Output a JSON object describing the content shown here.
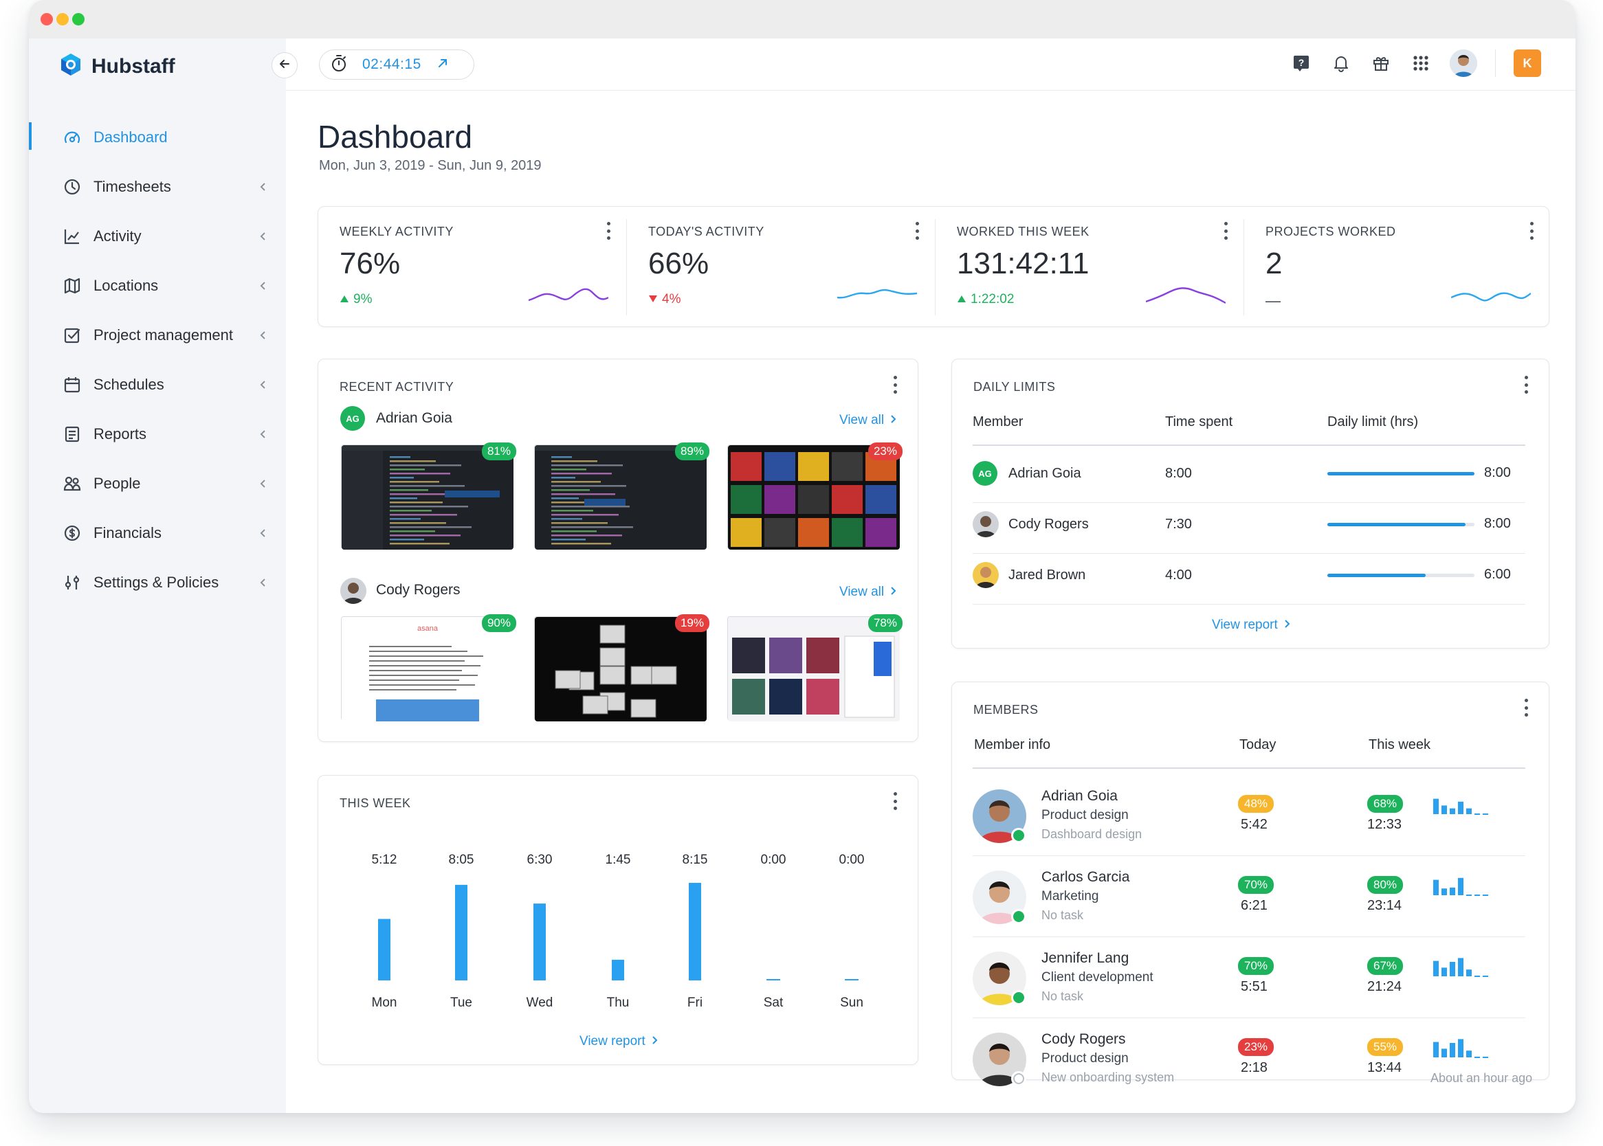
{
  "app": {
    "name": "Hubstaff"
  },
  "timer": {
    "value": "02:44:15"
  },
  "topbar": {
    "user_initial": "K"
  },
  "sidebar": {
    "items": [
      {
        "label": "Dashboard",
        "icon": "gauge-icon",
        "active": true
      },
      {
        "label": "Timesheets",
        "icon": "clock-icon"
      },
      {
        "label": "Activity",
        "icon": "line-chart-icon"
      },
      {
        "label": "Locations",
        "icon": "map-icon"
      },
      {
        "label": "Project management",
        "icon": "checkbox-icon"
      },
      {
        "label": "Schedules",
        "icon": "calendar-icon"
      },
      {
        "label": "Reports",
        "icon": "report-icon"
      },
      {
        "label": "People",
        "icon": "people-icon"
      },
      {
        "label": "Financials",
        "icon": "dollar-icon"
      },
      {
        "label": "Settings & Policies",
        "icon": "sliders-icon"
      }
    ]
  },
  "page": {
    "title": "Dashboard",
    "date_range": "Mon, Jun 3, 2019 - Sun, Jun 9, 2019"
  },
  "stats": [
    {
      "label": "WEEKLY ACTIVITY",
      "value": "76%",
      "delta": "9%",
      "trend": "up"
    },
    {
      "label": "TODAY'S ACTIVITY",
      "value": "66%",
      "delta": "4%",
      "trend": "down"
    },
    {
      "label": "WORKED THIS WEEK",
      "value": "131:42:11",
      "delta": "1:22:02",
      "trend": "up"
    },
    {
      "label": "PROJECTS WORKED",
      "value": "2",
      "delta": "—",
      "trend": "none"
    }
  ],
  "recent_activity": {
    "title": "RECENT ACTIVITY",
    "view_all": "View all",
    "users": [
      {
        "initials": "AG",
        "name": "Adrian Goia",
        "shots": [
          {
            "pct": "81%",
            "level": "g"
          },
          {
            "pct": "89%",
            "level": "g"
          },
          {
            "pct": "23%",
            "level": "r"
          }
        ]
      },
      {
        "initials": "",
        "name": "Cody Rogers",
        "shots": [
          {
            "pct": "90%",
            "level": "g"
          },
          {
            "pct": "19%",
            "level": "r"
          },
          {
            "pct": "78%",
            "level": "g"
          }
        ]
      }
    ],
    "asana_label": "asana"
  },
  "this_week": {
    "title": "THIS WEEK",
    "view_report": "View report",
    "chart_data": {
      "type": "bar",
      "categories": [
        "Mon",
        "Tue",
        "Wed",
        "Thu",
        "Fri",
        "Sat",
        "Sun"
      ],
      "labels": [
        "5:12",
        "8:05",
        "6:30",
        "1:45",
        "8:15",
        "0:00",
        "0:00"
      ],
      "values": [
        5.2,
        8.083,
        6.5,
        1.75,
        8.25,
        0,
        0
      ],
      "ylim": [
        0,
        8.25
      ]
    }
  },
  "daily_limits": {
    "title": "DAILY LIMITS",
    "headers": {
      "member": "Member",
      "time_spent": "Time spent",
      "limit": "Daily limit (hrs)"
    },
    "view_report": "View report",
    "rows": [
      {
        "initials": "AG",
        "name": "Adrian Goia",
        "spent": "8:00",
        "limit": "8:00",
        "fraction": 1.0
      },
      {
        "initials": "",
        "name": "Cody Rogers",
        "spent": "7:30",
        "limit": "8:00",
        "fraction": 0.9375
      },
      {
        "initials": "",
        "name": "Jared Brown",
        "spent": "4:00",
        "limit": "6:00",
        "fraction": 0.667
      }
    ]
  },
  "members": {
    "title": "MEMBERS",
    "headers": {
      "info": "Member info",
      "today": "Today",
      "week": "This week"
    },
    "rows": [
      {
        "name": "Adrian Goia",
        "role": "Product design",
        "task": "Dashboard design",
        "today_pct": "48%",
        "today_level": "o",
        "today_time": "5:42",
        "week_pct": "68%",
        "week_level": "g",
        "week_time": "12:33",
        "online": true,
        "bars": [
          0.8,
          0.45,
          0.3,
          0.65,
          0.3,
          0,
          0
        ],
        "note": ""
      },
      {
        "name": "Carlos Garcia",
        "role": "Marketing",
        "task": "No task",
        "today_pct": "70%",
        "today_level": "g",
        "today_time": "6:21",
        "week_pct": "80%",
        "week_level": "g",
        "week_time": "23:14",
        "online": true,
        "bars": [
          0.8,
          0.35,
          0.4,
          0.9,
          0,
          0,
          0
        ],
        "note": ""
      },
      {
        "name": "Jennifer Lang",
        "role": "Client development",
        "task": "No task",
        "today_pct": "70%",
        "today_level": "g",
        "today_time": "5:51",
        "week_pct": "67%",
        "week_level": "g",
        "week_time": "21:24",
        "online": true,
        "bars": [
          0.8,
          0.45,
          0.75,
          0.95,
          0.35,
          0,
          0
        ],
        "note": ""
      },
      {
        "name": "Cody Rogers",
        "role": "Product design",
        "task": "New onboarding system",
        "today_pct": "23%",
        "today_level": "r",
        "today_time": "2:18",
        "week_pct": "55%",
        "week_level": "o",
        "week_time": "13:44",
        "online": false,
        "bars": [
          0.8,
          0.45,
          0.75,
          0.95,
          0.35,
          0,
          0
        ],
        "note": "About an hour ago"
      }
    ]
  },
  "colors": {
    "accent": "#2193e3",
    "green": "#1cb35c",
    "red": "#e43e3e",
    "orange": "#f6b52a",
    "purple": "#8a3fe0"
  }
}
